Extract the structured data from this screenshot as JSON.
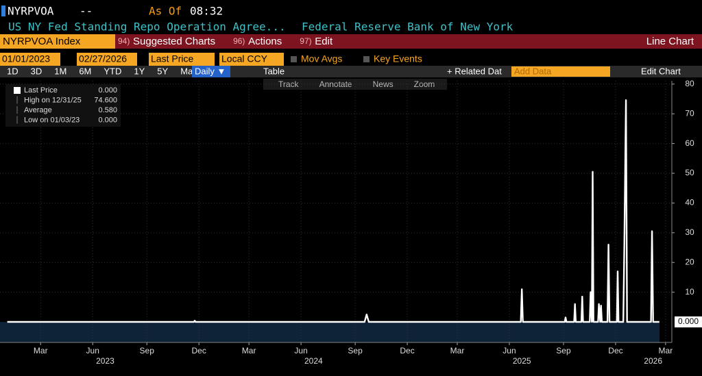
{
  "header": {
    "ticker": "NYRPVOA",
    "dash": "--",
    "as_of": "As Of",
    "time": "08:32",
    "description": "US NY Fed Standing Repo Operation Agree...",
    "source": "Federal Reserve Bank of New York"
  },
  "toolbar": {
    "security": "NYRPVOA Index",
    "menus": [
      {
        "num": "94)",
        "label": "Suggested Charts"
      },
      {
        "num": "96)",
        "label": "Actions"
      },
      {
        "num": "97)",
        "label": "Edit"
      }
    ],
    "chart_kind": "Line Chart"
  },
  "settings": {
    "start": "01/01/2023",
    "end": "02/27/2026",
    "field": "Last Price",
    "currency": "Local CCY",
    "mov_avgs": "Mov Avgs",
    "key_events": "Key Events"
  },
  "periods": {
    "items": [
      "1D",
      "3D",
      "1M",
      "6M",
      "YTD",
      "1Y",
      "5Y",
      "Max"
    ],
    "frequency": "Daily ▼",
    "table": "Table",
    "related": "+ Related Dat",
    "add_data": "Add Data",
    "edit_chart": "Edit Chart"
  },
  "chart_tools": [
    "Track",
    "Annotate",
    "News",
    "Zoom"
  ],
  "chart_data": {
    "type": "line",
    "stats": [
      {
        "label": "Last Price",
        "date": "",
        "value": "0.000"
      },
      {
        "label": "High on",
        "date": "12/31/25",
        "value": "74.600"
      },
      {
        "label": "Average",
        "date": "",
        "value": "0.580"
      },
      {
        "label": "Low on",
        "date": "01/03/23",
        "value": "0.000"
      }
    ],
    "last_value_label": "0.000",
    "series": [
      {
        "name": "Last Price",
        "color": "#ffffff",
        "x": [
          2023.0,
          2023.896,
          2023.9,
          2023.904,
          2024.715,
          2024.725,
          2024.735,
          2025.465,
          2025.47,
          2025.475,
          2025.676,
          2025.68,
          2025.684,
          2025.721,
          2025.725,
          2025.729,
          2025.756,
          2025.76,
          2025.764,
          2025.796,
          2025.8,
          2025.806,
          2025.81,
          2025.814,
          2025.836,
          2025.84,
          2025.846,
          2025.85,
          2025.854,
          2025.881,
          2025.886,
          2025.891,
          2025.926,
          2025.93,
          2025.934,
          2025.957,
          2025.962,
          2025.97,
          2025.975,
          2026.09,
          2026.095,
          2026.1,
          2026.13
        ],
        "values": [
          0,
          0,
          0.4,
          0,
          0,
          2.5,
          0,
          0,
          11,
          0,
          0,
          1.5,
          0,
          0,
          6,
          0,
          0,
          8.5,
          0,
          0,
          10,
          0,
          50.5,
          0,
          0,
          6,
          0,
          5.5,
          0,
          0,
          26,
          0,
          0,
          17,
          0,
          0,
          26,
          74.6,
          0,
          0,
          30.5,
          0,
          0
        ]
      }
    ],
    "xlim": [
      2022.965,
      2026.19
    ],
    "ylim": [
      -6.9,
      81.1
    ],
    "yticks": [
      10,
      20,
      30,
      40,
      50,
      60,
      70,
      80
    ],
    "xticks": [
      {
        "value": 2023.16,
        "label": "Mar"
      },
      {
        "value": 2023.41,
        "label": "Jun"
      },
      {
        "value": 2023.67,
        "label": "Sep"
      },
      {
        "value": 2023.92,
        "label": "Dec"
      },
      {
        "value": 2024.16,
        "label": "Mar"
      },
      {
        "value": 2024.41,
        "label": "Jun"
      },
      {
        "value": 2024.67,
        "label": "Sep"
      },
      {
        "value": 2024.92,
        "label": "Dec"
      },
      {
        "value": 2025.16,
        "label": "Mar"
      },
      {
        "value": 2025.41,
        "label": "Jun"
      },
      {
        "value": 2025.67,
        "label": "Sep"
      },
      {
        "value": 2025.92,
        "label": "Dec"
      },
      {
        "value": 2026.16,
        "label": "Mar"
      }
    ],
    "year_labels": [
      {
        "value": 2023.47,
        "label": "2023"
      },
      {
        "value": 2024.47,
        "label": "2024"
      },
      {
        "value": 2025.47,
        "label": "2025"
      },
      {
        "value": 2026.1,
        "label": "2026"
      }
    ],
    "grid": true
  }
}
